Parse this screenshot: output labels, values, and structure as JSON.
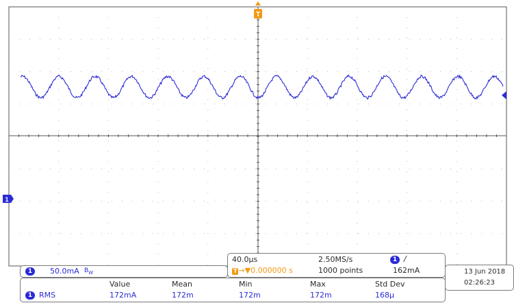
{
  "colors": {
    "trace": "#2b2bd6",
    "trigger": "#f29a12",
    "grid": "#b8b8b8",
    "frame": "#555555"
  },
  "screen": {
    "trigger_marker_label": "T",
    "ch1_marker_label": "1",
    "waveform": {
      "cycles_on_screen": 13.3,
      "y_center_div": 1.3,
      "amplitude_div": 0.6,
      "noise_div": 0.07
    }
  },
  "channel_bar": {
    "channel": "1",
    "scale": "50.0mA",
    "bw_icon": "bw-limit-icon"
  },
  "timebase": {
    "time_per_div": "40.0µs",
    "trigger_offset": "0.000000 s",
    "sample_rate": "2.50MS/s",
    "record_length": "1000 points",
    "trigger_channel": "1",
    "trigger_slope_icon": "rising-edge-icon",
    "trigger_level": "162mA"
  },
  "datetime": {
    "date": "13 Jun  2018",
    "time": "02:26:23"
  },
  "measurements": {
    "headers": [
      "Value",
      "Mean",
      "Min",
      "Max",
      "Std Dev"
    ],
    "rows": [
      {
        "channel": "1",
        "name": "RMS",
        "values": [
          "172mA",
          "172m",
          "172m",
          "172m",
          "168µ"
        ]
      }
    ]
  }
}
